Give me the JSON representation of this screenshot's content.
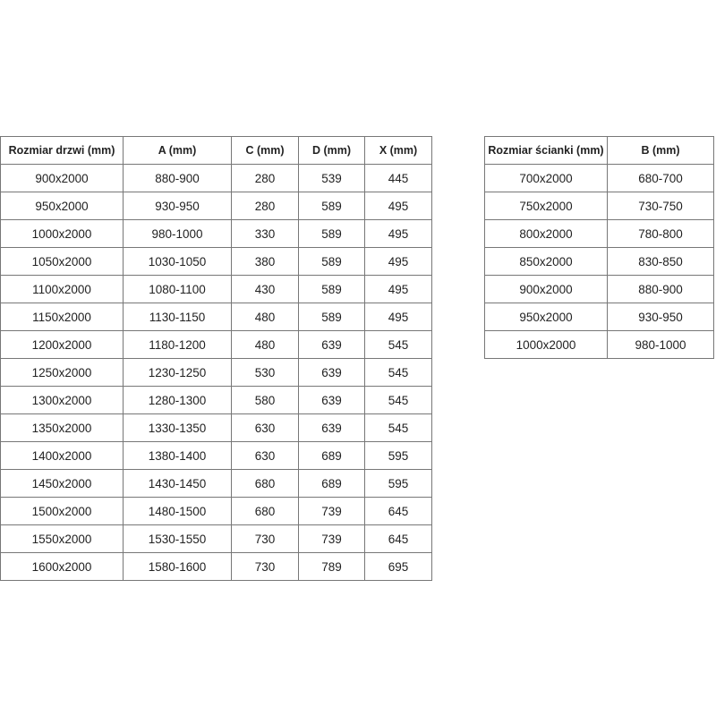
{
  "doors_table": {
    "headers": [
      "Rozmiar drzwi (mm)",
      "A (mm)",
      "C (mm)",
      "D (mm)",
      "X (mm)"
    ],
    "rows": [
      [
        "900x2000",
        "880-900",
        "280",
        "539",
        "445"
      ],
      [
        "950x2000",
        "930-950",
        "280",
        "589",
        "495"
      ],
      [
        "1000x2000",
        "980-1000",
        "330",
        "589",
        "495"
      ],
      [
        "1050x2000",
        "1030-1050",
        "380",
        "589",
        "495"
      ],
      [
        "1100x2000",
        "1080-1100",
        "430",
        "589",
        "495"
      ],
      [
        "1150x2000",
        "1130-1150",
        "480",
        "589",
        "495"
      ],
      [
        "1200x2000",
        "1180-1200",
        "480",
        "639",
        "545"
      ],
      [
        "1250x2000",
        "1230-1250",
        "530",
        "639",
        "545"
      ],
      [
        "1300x2000",
        "1280-1300",
        "580",
        "639",
        "545"
      ],
      [
        "1350x2000",
        "1330-1350",
        "630",
        "639",
        "545"
      ],
      [
        "1400x2000",
        "1380-1400",
        "630",
        "689",
        "595"
      ],
      [
        "1450x2000",
        "1430-1450",
        "680",
        "689",
        "595"
      ],
      [
        "1500x2000",
        "1480-1500",
        "680",
        "739",
        "645"
      ],
      [
        "1550x2000",
        "1530-1550",
        "730",
        "739",
        "645"
      ],
      [
        "1600x2000",
        "1580-1600",
        "730",
        "789",
        "695"
      ]
    ]
  },
  "walls_table": {
    "headers": [
      "Rozmiar ścianki (mm)",
      "B (mm)"
    ],
    "rows": [
      [
        "700x2000",
        "680-700"
      ],
      [
        "750x2000",
        "730-750"
      ],
      [
        "800x2000",
        "780-800"
      ],
      [
        "850x2000",
        "830-850"
      ],
      [
        "900x2000",
        "880-900"
      ],
      [
        "950x2000",
        "930-950"
      ],
      [
        "1000x2000",
        "980-1000"
      ]
    ]
  }
}
